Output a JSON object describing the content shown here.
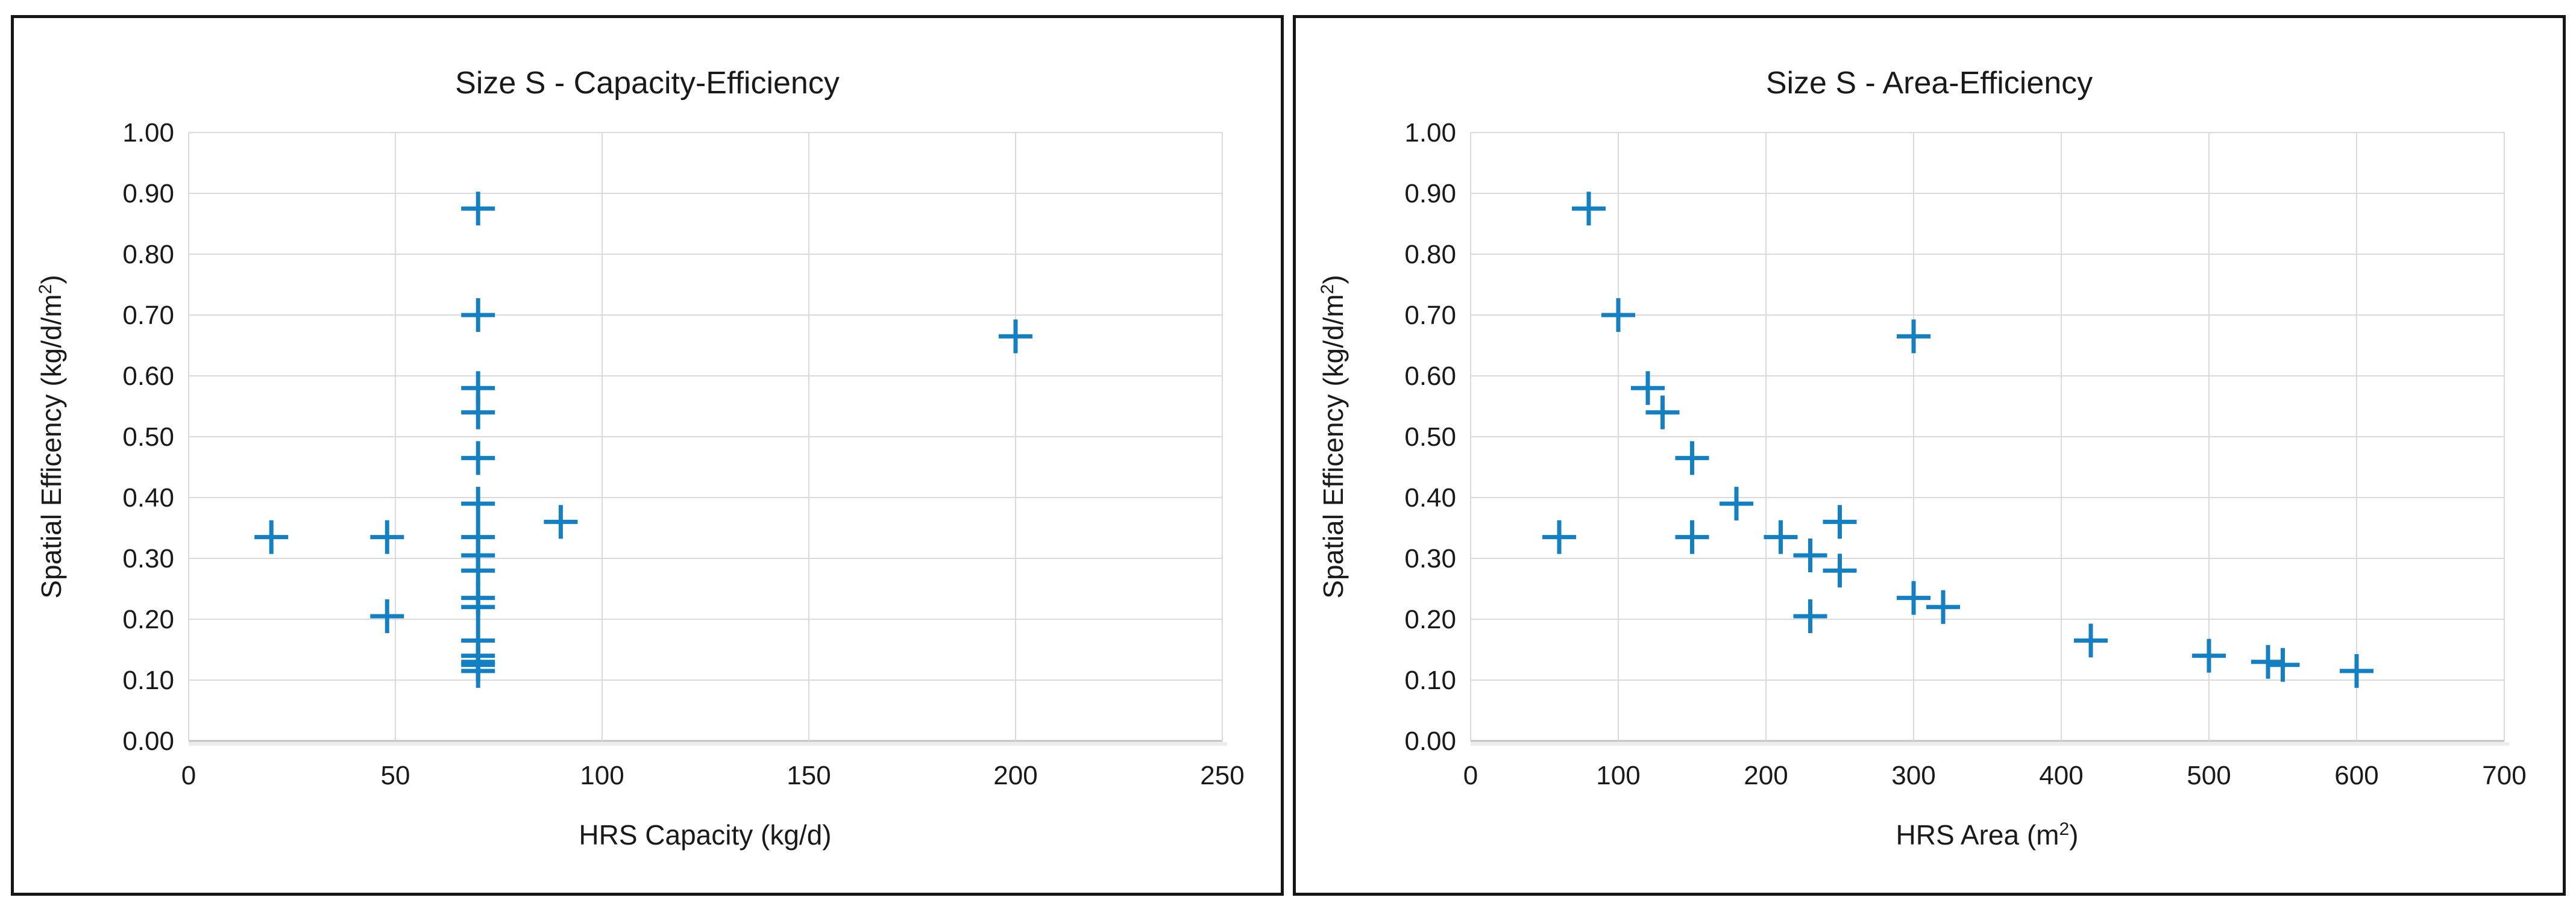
{
  "style": {
    "marker_color": "#1380C4",
    "grid_color": "#DADADA",
    "axis_line_color": "#C0C0C0",
    "axis_shadow_color": "#ECECEC",
    "text_color": "#1A1A1A",
    "panel_border_color": "#161616",
    "background": "#FFFFFF"
  },
  "chart_data": [
    {
      "type": "scatter",
      "title": "Size S - Capacity-Efficiency",
      "xlabel_main": "HRS Capacity (kg/d)",
      "xlabel_sup": "",
      "xlabel_close": "",
      "ylabel_main": "Spatial Efficency (kg/d/m",
      "ylabel_sup": "2",
      "ylabel_close": ")",
      "xlim": [
        0,
        250
      ],
      "xticks": [
        0,
        50,
        100,
        150,
        200,
        250
      ],
      "ylim": [
        0.0,
        1.0
      ],
      "yticks": [
        0.0,
        0.1,
        0.2,
        0.3,
        0.4,
        0.5,
        0.6,
        0.7,
        0.8,
        0.9,
        1.0
      ],
      "ytick_decimals": 2,
      "grid": true,
      "legend": "none",
      "marker": "plus",
      "series": [
        {
          "name": "Size S",
          "points": [
            [
              20,
              0.335
            ],
            [
              48,
              0.335
            ],
            [
              48,
              0.205
            ],
            [
              70,
              0.875
            ],
            [
              70,
              0.7
            ],
            [
              70,
              0.58
            ],
            [
              70,
              0.54
            ],
            [
              70,
              0.465
            ],
            [
              70,
              0.39
            ],
            [
              70,
              0.335
            ],
            [
              70,
              0.305
            ],
            [
              70,
              0.28
            ],
            [
              70,
              0.235
            ],
            [
              70,
              0.22
            ],
            [
              70,
              0.165
            ],
            [
              70,
              0.14
            ],
            [
              70,
              0.13
            ],
            [
              70,
              0.125
            ],
            [
              70,
              0.115
            ],
            [
              90,
              0.36
            ],
            [
              200,
              0.665
            ]
          ]
        }
      ]
    },
    {
      "type": "scatter",
      "title": "Size S - Area-Efficiency",
      "xlabel_main": "HRS Area (m",
      "xlabel_sup": "2",
      "xlabel_close": ")",
      "ylabel_main": "Spatial Efficency (kg/d/m",
      "ylabel_sup": "2",
      "ylabel_close": ")",
      "xlim": [
        0,
        700
      ],
      "xticks": [
        0,
        100,
        200,
        300,
        400,
        500,
        600,
        700
      ],
      "ylim": [
        0.0,
        1.0
      ],
      "yticks": [
        0.0,
        0.1,
        0.2,
        0.3,
        0.4,
        0.5,
        0.6,
        0.7,
        0.8,
        0.9,
        1.0
      ],
      "ytick_decimals": 2,
      "grid": true,
      "legend": "none",
      "marker": "plus",
      "series": [
        {
          "name": "Size S",
          "points": [
            [
              60,
              0.335
            ],
            [
              80,
              0.875
            ],
            [
              100,
              0.7
            ],
            [
              120,
              0.58
            ],
            [
              130,
              0.54
            ],
            [
              150,
              0.465
            ],
            [
              150,
              0.335
            ],
            [
              180,
              0.39
            ],
            [
              210,
              0.335
            ],
            [
              230,
              0.305
            ],
            [
              230,
              0.205
            ],
            [
              250,
              0.36
            ],
            [
              250,
              0.28
            ],
            [
              300,
              0.665
            ],
            [
              300,
              0.235
            ],
            [
              320,
              0.22
            ],
            [
              420,
              0.165
            ],
            [
              500,
              0.14
            ],
            [
              540,
              0.13
            ],
            [
              550,
              0.125
            ],
            [
              600,
              0.115
            ]
          ]
        }
      ]
    }
  ]
}
